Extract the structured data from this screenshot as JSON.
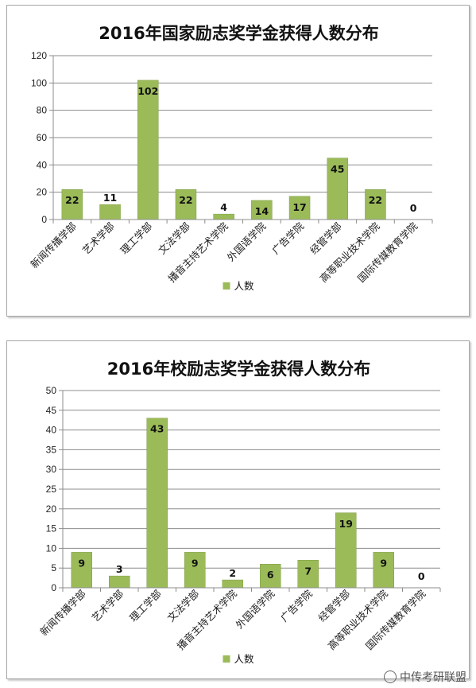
{
  "colors": {
    "bar": "#9bbb59",
    "bar_stroke": "#7f9c44",
    "grid": "#8c8c8c",
    "axis": "#8c8c8c"
  },
  "watermark": {
    "text": "中传考研联盟",
    "icon": "wechat-icon"
  },
  "chart_data": [
    {
      "type": "bar",
      "title": "2016年国家励志奖学金获得人数分布",
      "categories": [
        "新闻传播学部",
        "艺术学部",
        "理工学部",
        "文法学部",
        "播音主持艺术学院",
        "外国语学院",
        "广告学院",
        "经管学部",
        "高等职业技术学院",
        "国际传媒教育学院"
      ],
      "series": [
        {
          "name": "人数",
          "values": [
            22,
            11,
            102,
            22,
            4,
            14,
            17,
            45,
            22,
            0
          ]
        }
      ],
      "ylim": [
        0,
        120
      ],
      "yticks": [
        0,
        20,
        40,
        60,
        80,
        100,
        120
      ],
      "grid": true,
      "legend": "bottom"
    },
    {
      "type": "bar",
      "title": "2016年校励志奖学金获得人数分布",
      "categories": [
        "新闻传播学部",
        "艺术学部",
        "理工学部",
        "文法学部",
        "播音主持艺术学院",
        "外国语学院",
        "广告学院",
        "经管学部",
        "高等职业技术学院",
        "国际传媒教育学院"
      ],
      "series": [
        {
          "name": "人数",
          "values": [
            9,
            3,
            43,
            9,
            2,
            6,
            7,
            19,
            9,
            0
          ]
        }
      ],
      "ylim": [
        0,
        50
      ],
      "yticks": [
        0,
        5,
        10,
        15,
        20,
        25,
        30,
        35,
        40,
        45,
        50
      ],
      "grid": true,
      "legend": "bottom"
    }
  ]
}
